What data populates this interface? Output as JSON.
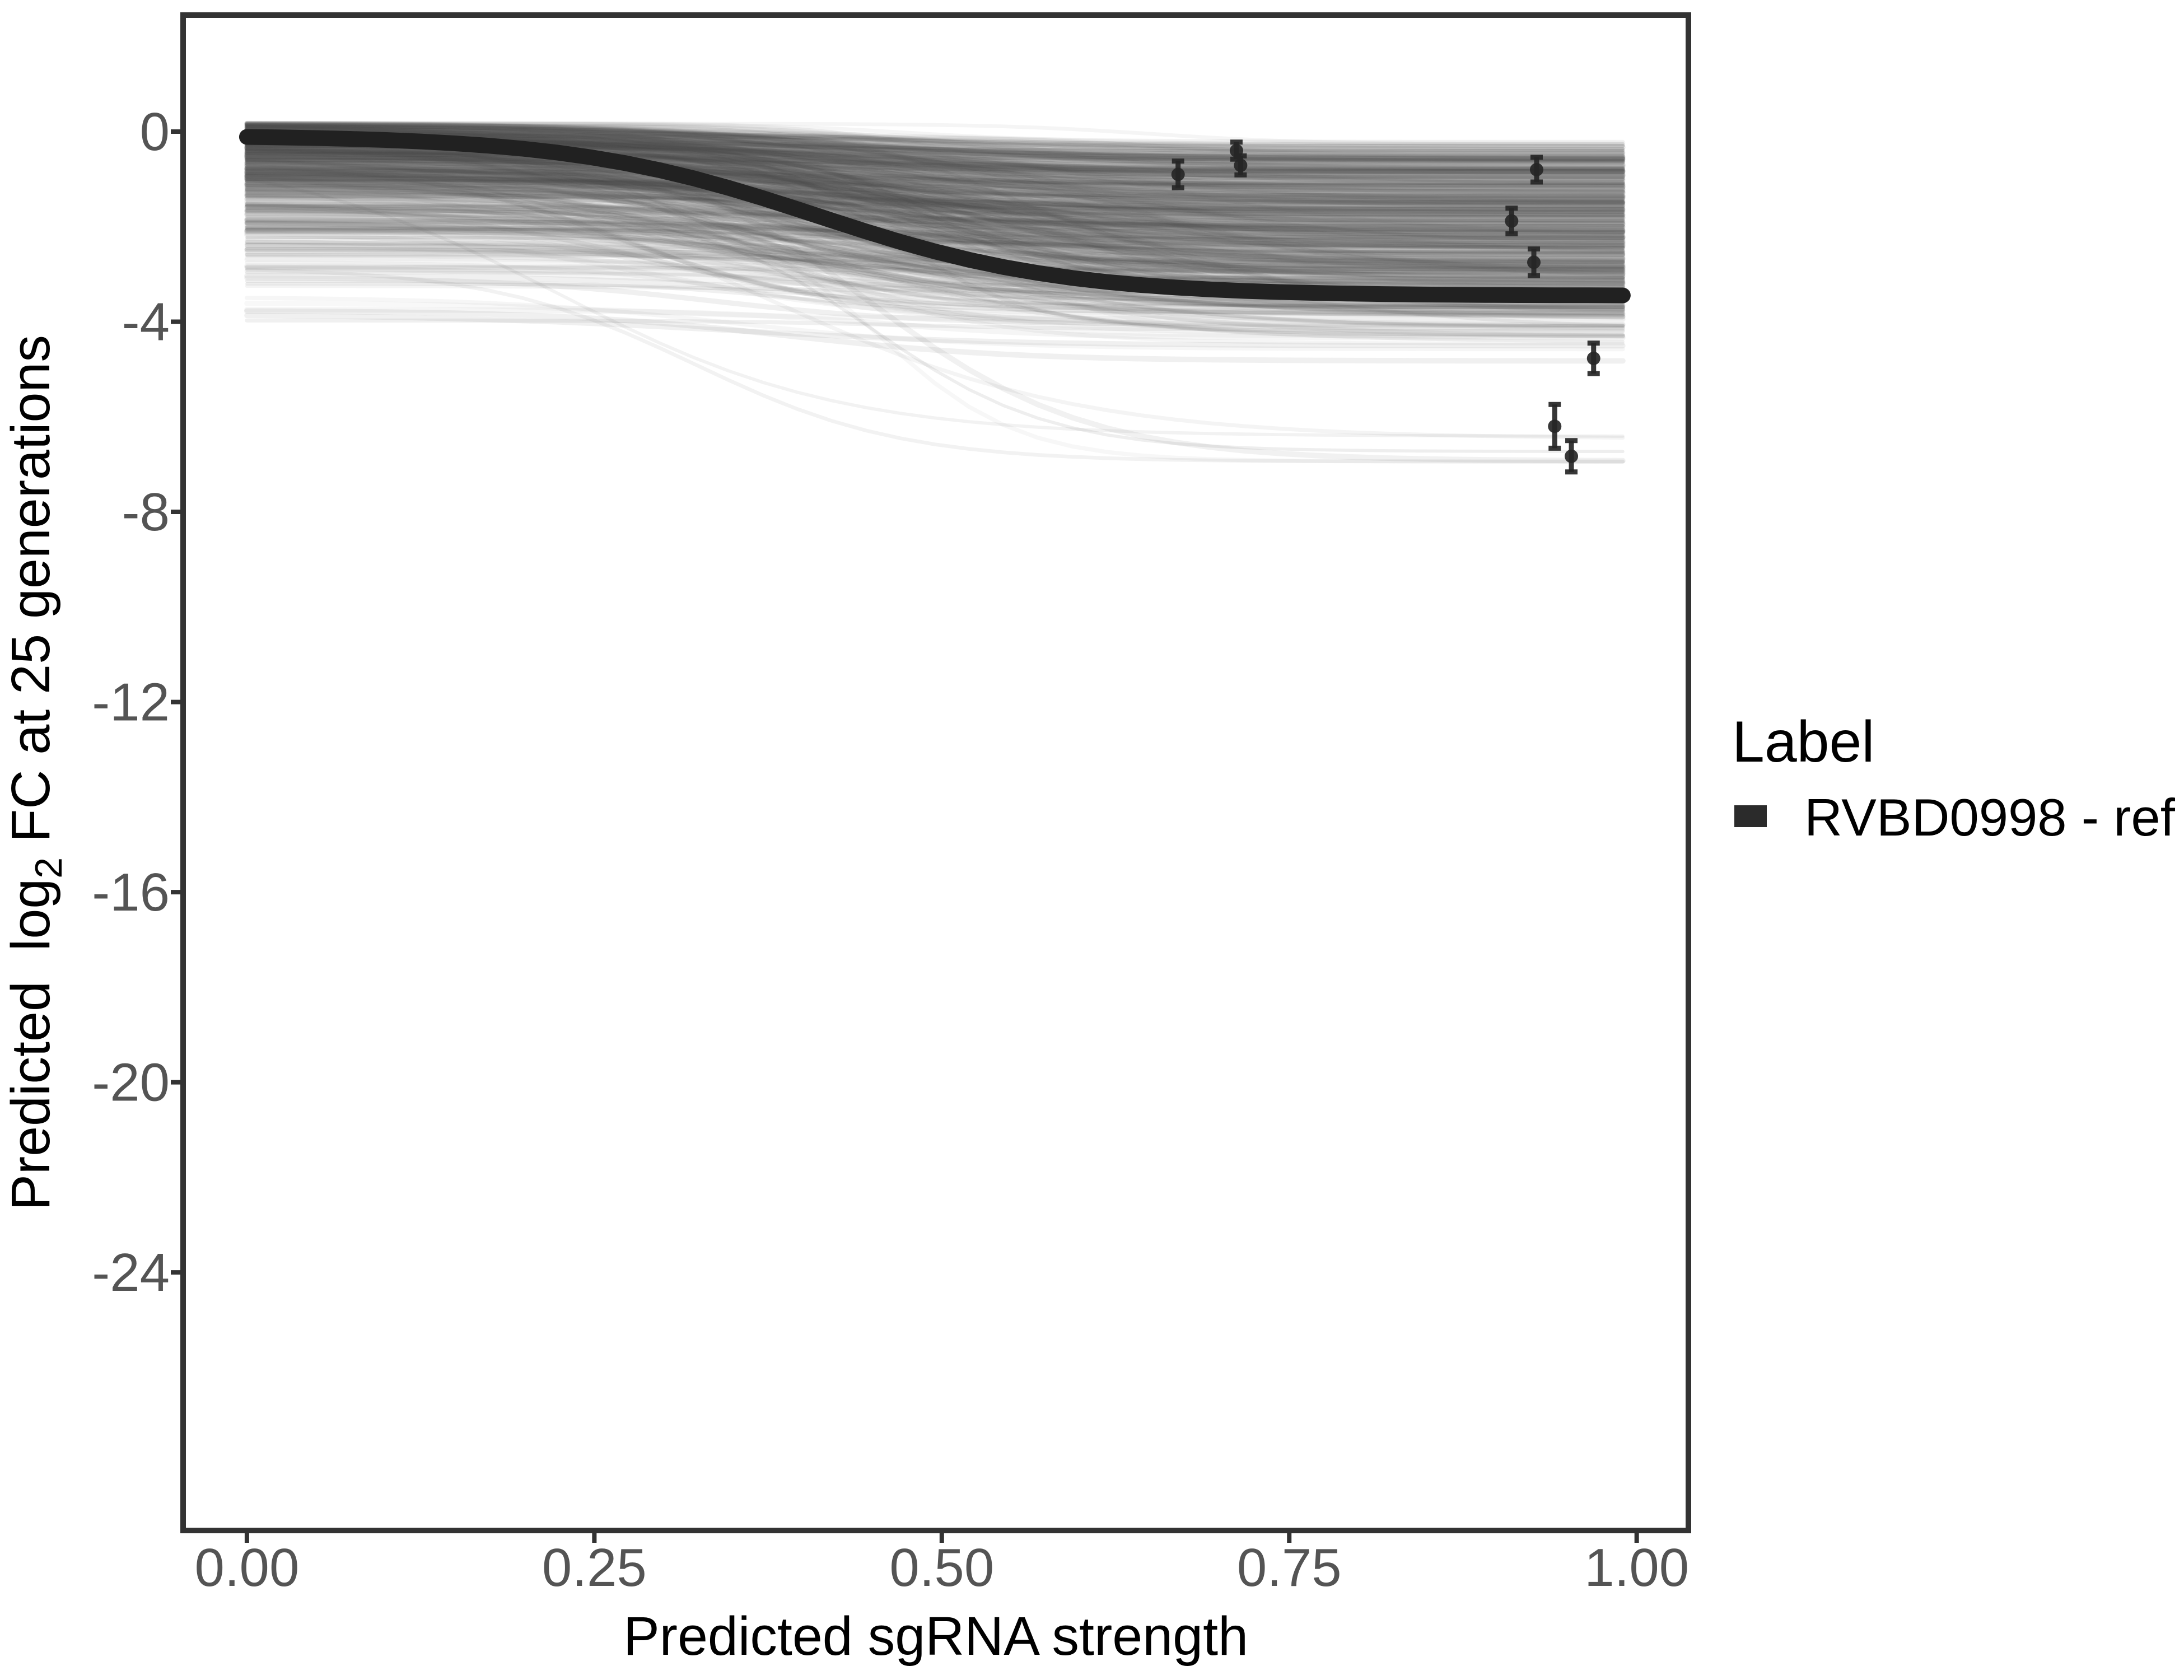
{
  "chart_data": {
    "type": "line",
    "title": "",
    "xlabel": "Predicted sgRNA strength",
    "ylabel": "Predicted log2 FC at 25 generations",
    "ylabel_parts": {
      "pre": "Predicted  log",
      "sub": "2",
      "post": " FC at 25 generations"
    },
    "x_tick_labels": [
      "0.00",
      "0.25",
      "0.50",
      "0.75",
      "1.00"
    ],
    "x_tick_values": [
      0,
      0.25,
      0.5,
      0.75,
      1.0
    ],
    "y_tick_labels": [
      "0",
      "-4",
      "-8",
      "-12",
      "-16",
      "-20",
      "-24"
    ],
    "y_tick_values": [
      0,
      -4,
      -8,
      -12,
      -16,
      -20,
      -24
    ],
    "xlim": [
      -0.0459,
      1.0372
    ],
    "ylim": [
      -29.43,
      2.451
    ],
    "grid": false,
    "legend": {
      "title": "Label",
      "position": "right",
      "entries": [
        {
          "label": "RVBD0998 - ref",
          "type": "line",
          "color": "#2b2b2b"
        }
      ]
    },
    "reference_curve": {
      "name": "RVBD0998 - ref",
      "model": "logistic",
      "x_range": [
        0,
        0.99
      ],
      "upper_asymptote": -0.08,
      "lower_asymptote": -3.45,
      "drop": 3.37,
      "midpoint": 0.41,
      "scale": 0.088,
      "sample_points": [
        {
          "x": 0.0,
          "y": -0.11
        },
        {
          "x": 0.1,
          "y": -0.18
        },
        {
          "x": 0.2,
          "y": -0.36
        },
        {
          "x": 0.3,
          "y": -0.83
        },
        {
          "x": 0.4,
          "y": -1.67
        },
        {
          "x": 0.5,
          "y": -2.56
        },
        {
          "x": 0.6,
          "y": -3.1
        },
        {
          "x": 0.7,
          "y": -3.33
        },
        {
          "x": 0.8,
          "y": -3.41
        },
        {
          "x": 0.9,
          "y": -3.44
        },
        {
          "x": 0.99,
          "y": -3.45
        }
      ]
    },
    "posterior_draws": {
      "description": "translucent gray sigmoid spaghetti of posterior draws behind reference curve",
      "count": 700,
      "seed": 1234,
      "x_range": [
        0,
        0.99
      ],
      "start_value_range": [
        -4.45,
        0.18
      ],
      "end_value_range": [
        -7.15,
        -0.3
      ],
      "midpoint_range": [
        0.2,
        0.72
      ],
      "scale_range": [
        0.05,
        0.12
      ]
    },
    "points": [
      {
        "x": 0.67,
        "y": -0.9,
        "err": 0.28
      },
      {
        "x": 0.712,
        "y": -0.4,
        "err": 0.18
      },
      {
        "x": 0.715,
        "y": -0.71,
        "err": 0.2
      },
      {
        "x": 0.928,
        "y": -0.8,
        "err": 0.26
      },
      {
        "x": 0.91,
        "y": -1.88,
        "err": 0.27
      },
      {
        "x": 0.926,
        "y": -2.75,
        "err": 0.28
      },
      {
        "x": 0.969,
        "y": -4.77,
        "err": 0.32
      },
      {
        "x": 0.941,
        "y": -6.2,
        "err": 0.46
      },
      {
        "x": 0.953,
        "y": -6.83,
        "err": 0.33
      }
    ],
    "style": {
      "background": "#ffffff",
      "panel_border_color": "#333333",
      "tick_color": "#333333",
      "tick_label_color": "#545454",
      "axis_title_color": "#000000",
      "legend_text_color": "#000000",
      "reference_curve_color": "#212121",
      "point_color": "#262626",
      "draw_color": "#4d4d4d"
    }
  }
}
